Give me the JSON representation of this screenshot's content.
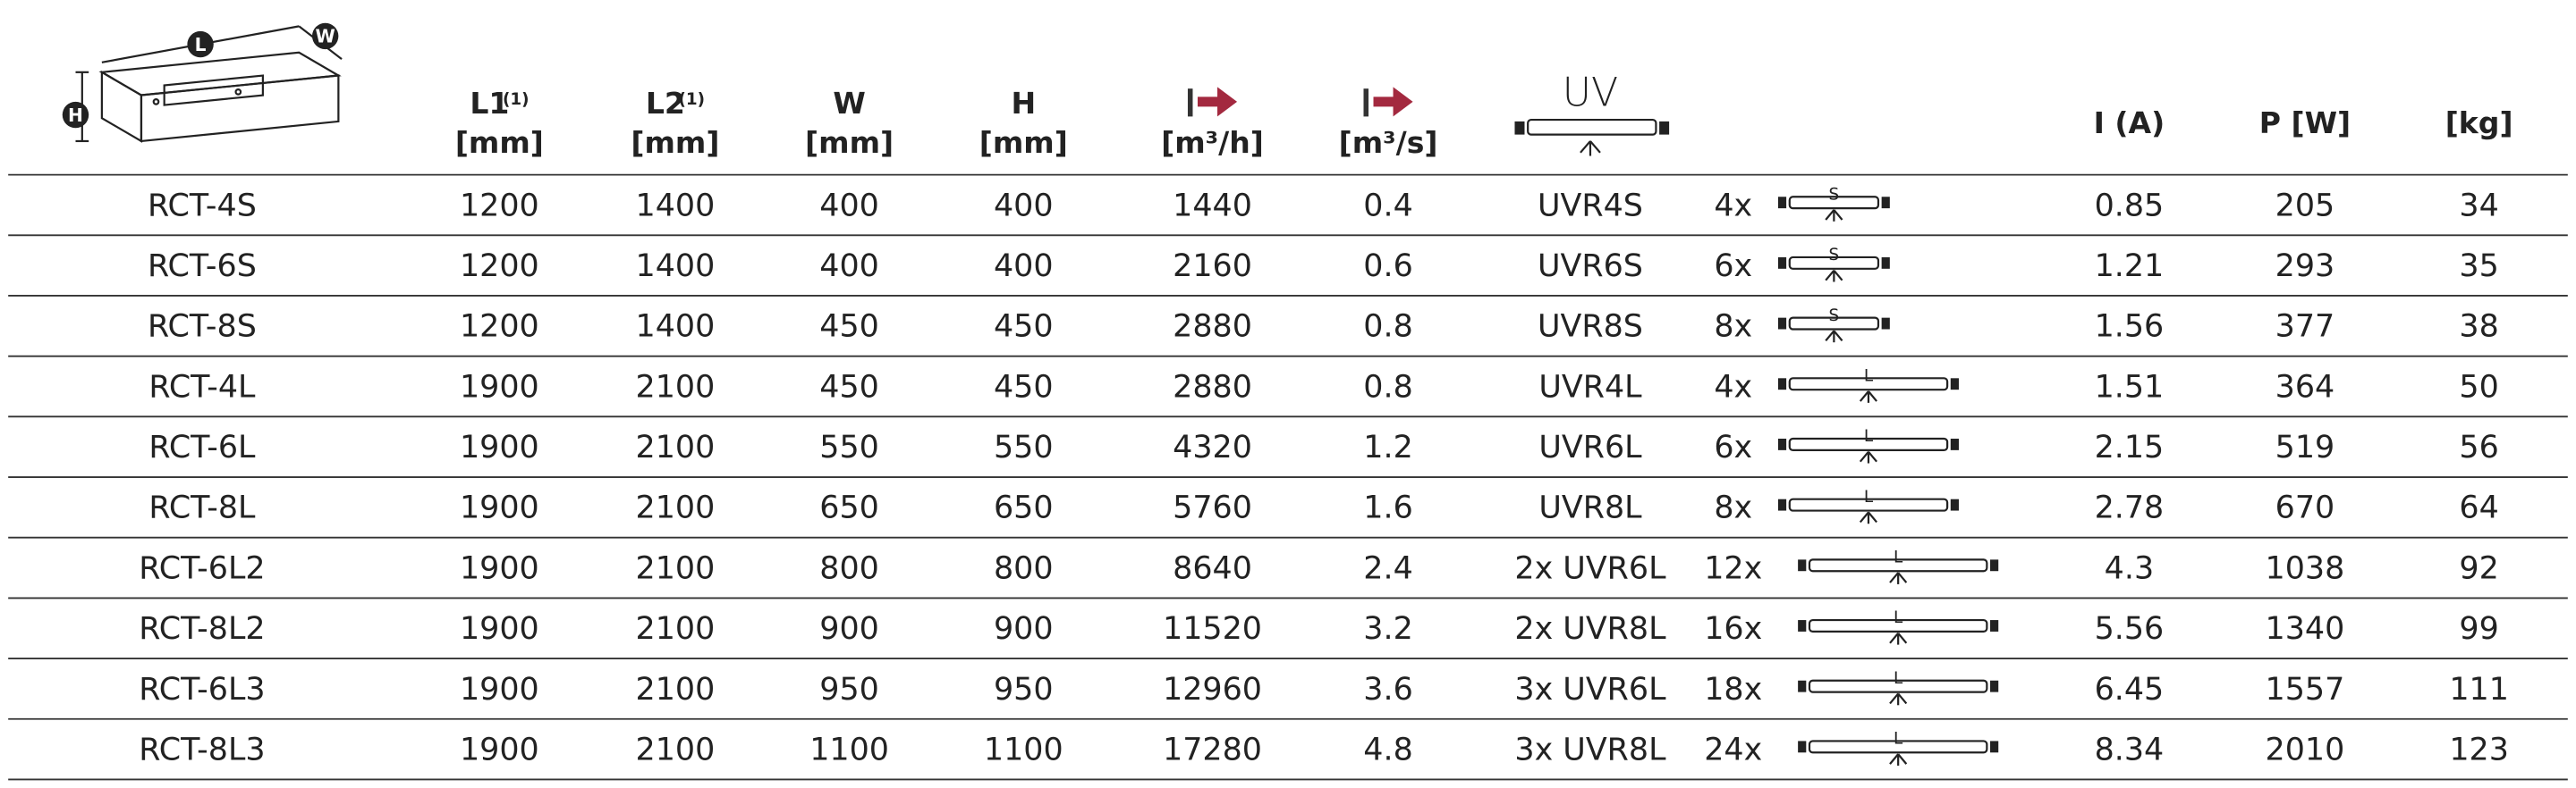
{
  "header": {
    "diagram_labels": {
      "length": "L",
      "width": "W",
      "height": "H"
    },
    "columns": [
      {
        "name": "L1",
        "note": "(1)",
        "unit": "[mm]"
      },
      {
        "name": "L2",
        "note": "(1)",
        "unit": "[mm]"
      },
      {
        "name": "W",
        "unit": "[mm]"
      },
      {
        "name": "H",
        "unit": "[mm]"
      },
      {
        "unit": "[m³/h]"
      },
      {
        "unit": "[m³/s]"
      },
      {
        "name": "UV"
      },
      {
        "name": "I (A)"
      },
      {
        "name": "P [W]"
      },
      {
        "name": "[kg]"
      }
    ]
  },
  "table": {
    "rows": [
      [
        "RCT-4S",
        "1200",
        "1400",
        "400",
        "400",
        "1440",
        "0.4",
        "UVR4S",
        "4x",
        "S",
        "0.85",
        "205",
        "34"
      ],
      [
        "RCT-6S",
        "1200",
        "1400",
        "400",
        "400",
        "2160",
        "0.6",
        "UVR6S",
        "6x",
        "S",
        "1.21",
        "293",
        "35"
      ],
      [
        "RCT-8S",
        "1200",
        "1400",
        "450",
        "450",
        "2880",
        "0.8",
        "UVR8S",
        "8x",
        "S",
        "1.56",
        "377",
        "38"
      ],
      [
        "RCT-4L",
        "1900",
        "2100",
        "450",
        "450",
        "2880",
        "0.8",
        "UVR4L",
        "4x",
        "L",
        "1.51",
        "364",
        "50"
      ],
      [
        "RCT-6L",
        "1900",
        "2100",
        "550",
        "550",
        "4320",
        "1.2",
        "UVR6L",
        "6x",
        "L",
        "2.15",
        "519",
        "56"
      ],
      [
        "RCT-8L",
        "1900",
        "2100",
        "650",
        "650",
        "5760",
        "1.6",
        "UVR8L",
        "8x",
        "L",
        "2.78",
        "670",
        "64"
      ],
      [
        "RCT-6L2",
        "1900",
        "2100",
        "800",
        "800",
        "8640",
        "2.4",
        "2x UVR6L",
        "12x",
        "L",
        "4.3",
        "1038",
        "92"
      ],
      [
        "RCT-8L2",
        "1900",
        "2100",
        "900",
        "900",
        "11520",
        "3.2",
        "2x UVR8L",
        "16x",
        "L",
        "5.56",
        "1340",
        "99"
      ],
      [
        "RCT-6L3",
        "1900",
        "2100",
        "950",
        "950",
        "12960",
        "3.6",
        "3x UVR6L",
        "18x",
        "L",
        "6.45",
        "1557",
        "111"
      ],
      [
        "RCT-8L3",
        "1900",
        "2100",
        "1100",
        "1100",
        "17280",
        "4.8",
        "3x UVR8L",
        "24x",
        "L",
        "8.34",
        "2010",
        "123"
      ]
    ]
  }
}
